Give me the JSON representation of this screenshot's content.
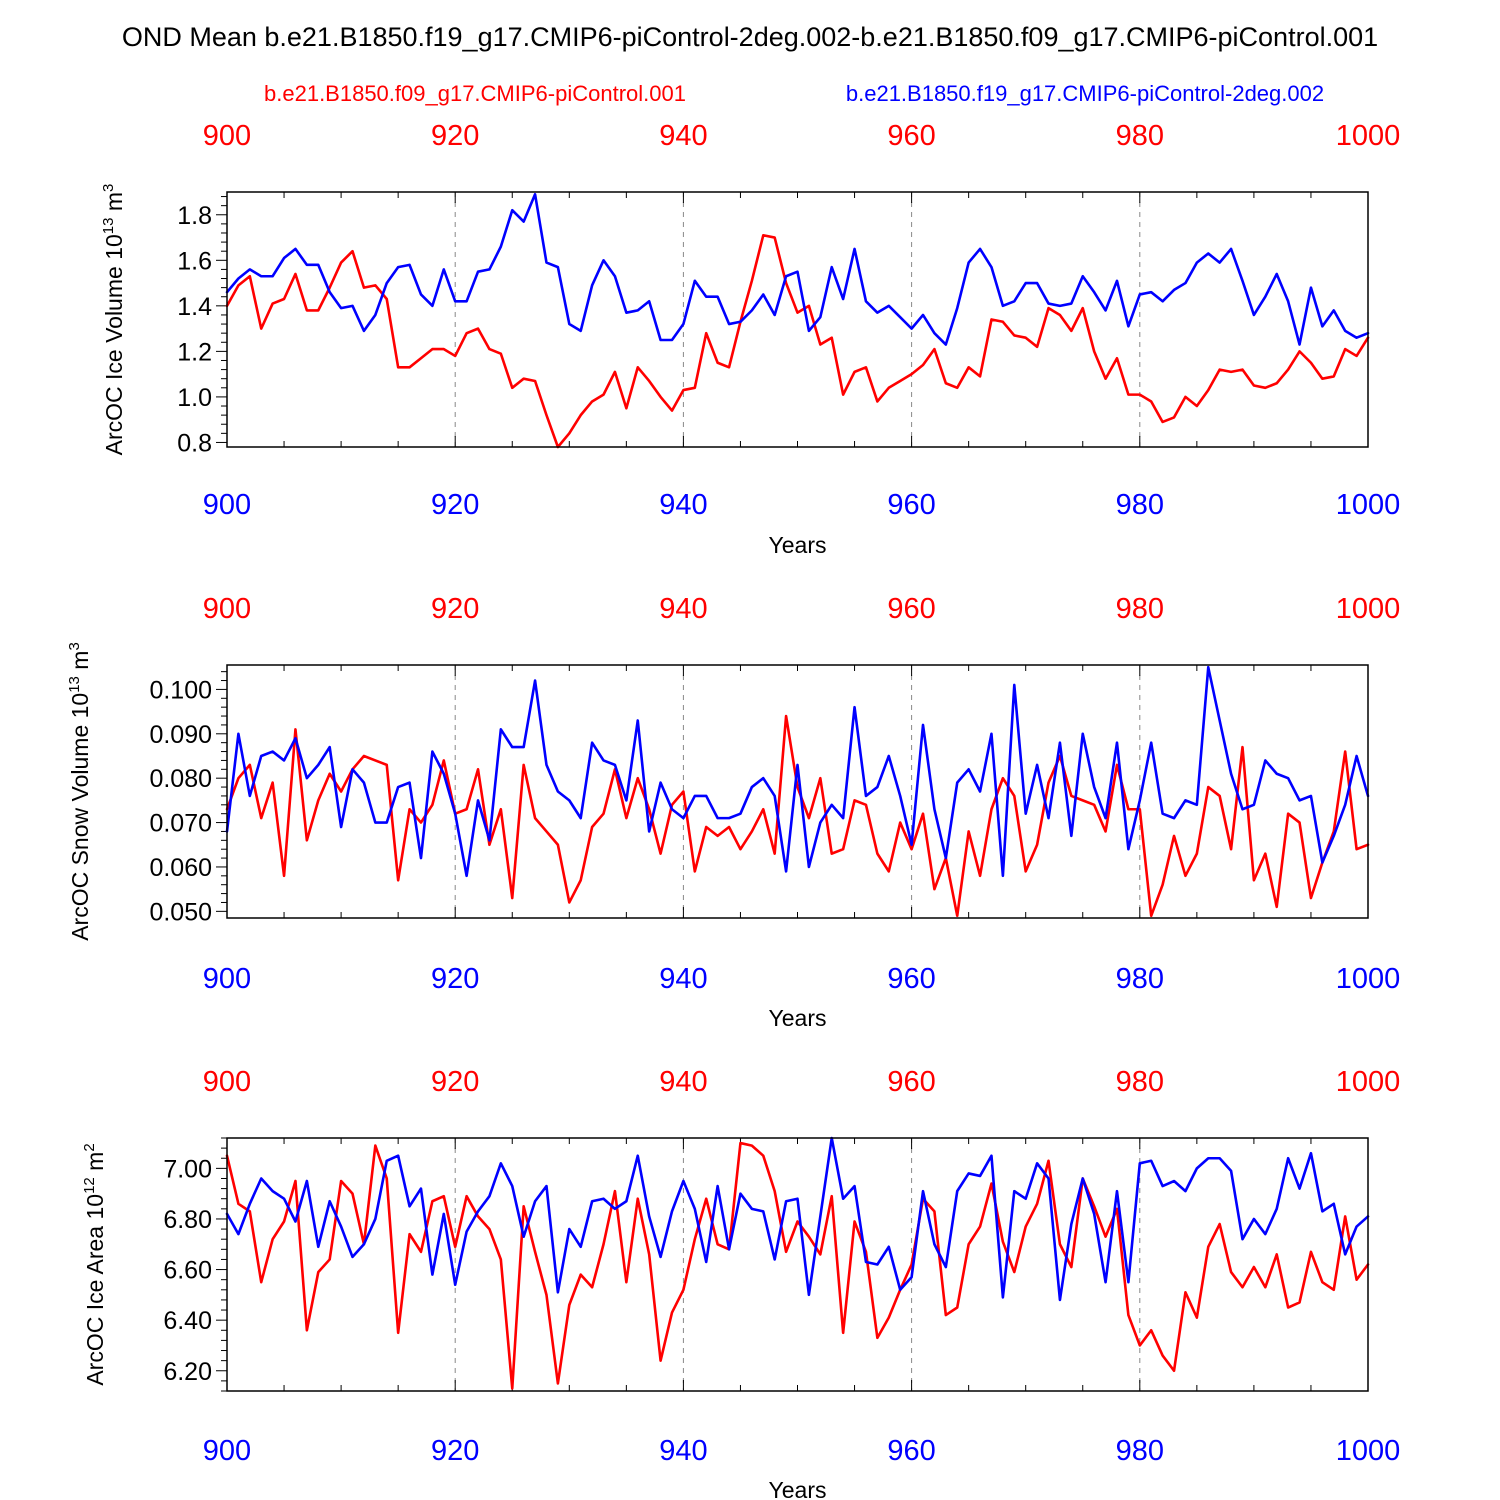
{
  "figure": {
    "title": "OND Mean b.e21.B1850.f19_g17.CMIP6-piControl-2deg.002-b.e21.B1850.f09_g17.CMIP6-piControl.001",
    "legend": {
      "red_label": "b.e21.B1850.f09_g17.CMIP6-piControl.001",
      "blue_label": "b.e21.B1850.f19_g17.CMIP6-piControl-2deg.002"
    },
    "colors": {
      "red": "#ff0000",
      "blue": "#0000ff",
      "axis": "#000000",
      "grid": "#888888"
    }
  },
  "chart_data": [
    {
      "type": "line",
      "title": "",
      "ylabel_main": "ArcOC Ice Volume 10",
      "ylabel_exp": "13",
      "ylabel_tail": " m",
      "ylabel_sup2": "3",
      "xlabel": "Years",
      "xlim": [
        900,
        1000
      ],
      "ylim": [
        0.78,
        1.9
      ],
      "x_ticks": [
        "900",
        "920",
        "940",
        "960",
        "980",
        "1000"
      ],
      "y_ticks": [
        0.8,
        1.0,
        1.2,
        1.4,
        1.6,
        1.8
      ],
      "y_tick_labels": [
        "0.8",
        "1.0",
        "1.2",
        "1.4",
        "1.6",
        "1.8"
      ],
      "y_minor_step": 0.04,
      "x_start": 900,
      "series": [
        {
          "name": "b.e21.B1850.f09_g17.CMIP6-piControl.001",
          "color": "red",
          "values": [
            1.4,
            1.49,
            1.53,
            1.3,
            1.41,
            1.43,
            1.54,
            1.38,
            1.38,
            1.48,
            1.59,
            1.64,
            1.48,
            1.49,
            1.43,
            1.13,
            1.13,
            1.17,
            1.21,
            1.21,
            1.18,
            1.28,
            1.3,
            1.21,
            1.19,
            1.04,
            1.08,
            1.07,
            0.92,
            0.78,
            0.84,
            0.92,
            0.98,
            1.01,
            1.11,
            0.95,
            1.13,
            1.07,
            1.0,
            0.94,
            1.03,
            1.04,
            1.28,
            1.15,
            1.13,
            1.33,
            1.51,
            1.71,
            1.7,
            1.5,
            1.37,
            1.4,
            1.23,
            1.26,
            1.01,
            1.11,
            1.13,
            0.98,
            1.04,
            1.07,
            1.1,
            1.14,
            1.21,
            1.06,
            1.04,
            1.13,
            1.09,
            1.34,
            1.33,
            1.27,
            1.26,
            1.22,
            1.39,
            1.36,
            1.29,
            1.39,
            1.2,
            1.08,
            1.17,
            1.01,
            1.01,
            0.98,
            0.89,
            0.91,
            1.0,
            0.96,
            1.03,
            1.12,
            1.11,
            1.12,
            1.05,
            1.04,
            1.06,
            1.12,
            1.2,
            1.15,
            1.08,
            1.09,
            1.21,
            1.18,
            1.26
          ]
        },
        {
          "name": "b.e21.B1850.f19_g17.CMIP6-piControl-2deg.002",
          "color": "blue",
          "values": [
            1.46,
            1.52,
            1.56,
            1.53,
            1.53,
            1.61,
            1.65,
            1.58,
            1.58,
            1.46,
            1.39,
            1.4,
            1.29,
            1.36,
            1.5,
            1.57,
            1.58,
            1.45,
            1.4,
            1.56,
            1.42,
            1.42,
            1.55,
            1.56,
            1.66,
            1.82,
            1.77,
            1.89,
            1.59,
            1.57,
            1.32,
            1.29,
            1.49,
            1.6,
            1.53,
            1.37,
            1.38,
            1.42,
            1.25,
            1.25,
            1.32,
            1.51,
            1.44,
            1.44,
            1.32,
            1.33,
            1.38,
            1.45,
            1.36,
            1.53,
            1.55,
            1.29,
            1.35,
            1.57,
            1.43,
            1.65,
            1.42,
            1.37,
            1.4,
            1.35,
            1.3,
            1.36,
            1.28,
            1.23,
            1.39,
            1.59,
            1.65,
            1.57,
            1.4,
            1.42,
            1.5,
            1.5,
            1.41,
            1.4,
            1.41,
            1.53,
            1.46,
            1.38,
            1.51,
            1.31,
            1.45,
            1.46,
            1.42,
            1.47,
            1.5,
            1.59,
            1.63,
            1.59,
            1.65,
            1.51,
            1.36,
            1.44,
            1.54,
            1.42,
            1.23,
            1.48,
            1.31,
            1.38,
            1.29,
            1.26,
            1.28
          ]
        }
      ]
    },
    {
      "type": "line",
      "title": "",
      "ylabel_main": "ArcOC Snow Volume 10",
      "ylabel_exp": "13",
      "ylabel_tail": " m",
      "ylabel_sup2": "3",
      "xlabel": "Years",
      "xlim": [
        900,
        1000
      ],
      "ylim": [
        0.0485,
        0.1055
      ],
      "x_ticks": [
        "900",
        "920",
        "940",
        "960",
        "980",
        "1000"
      ],
      "y_ticks": [
        0.05,
        0.06,
        0.07,
        0.08,
        0.09,
        0.1
      ],
      "y_tick_labels": [
        "0.050",
        "0.060",
        "0.070",
        "0.080",
        "0.090",
        "0.100"
      ],
      "y_minor_step": 0.002,
      "x_start": 900,
      "series": [
        {
          "name": "b.e21.B1850.f09_g17.CMIP6-piControl.001",
          "color": "red",
          "values": [
            0.073,
            0.08,
            0.083,
            0.071,
            0.079,
            0.058,
            0.091,
            0.066,
            0.075,
            0.081,
            0.077,
            0.082,
            0.085,
            0.084,
            0.083,
            0.057,
            0.073,
            0.07,
            0.074,
            0.084,
            0.072,
            0.073,
            0.082,
            0.065,
            0.073,
            0.053,
            0.083,
            0.071,
            0.068,
            0.065,
            0.052,
            0.057,
            0.069,
            0.072,
            0.082,
            0.071,
            0.08,
            0.073,
            0.063,
            0.074,
            0.077,
            0.059,
            0.069,
            0.067,
            0.069,
            0.064,
            0.068,
            0.073,
            0.063,
            0.094,
            0.078,
            0.071,
            0.08,
            0.063,
            0.064,
            0.075,
            0.074,
            0.063,
            0.059,
            0.07,
            0.064,
            0.072,
            0.055,
            0.062,
            0.049,
            0.068,
            0.058,
            0.073,
            0.08,
            0.076,
            0.059,
            0.065,
            0.079,
            0.085,
            0.076,
            0.075,
            0.074,
            0.068,
            0.083,
            0.073,
            0.073,
            0.049,
            0.056,
            0.067,
            0.058,
            0.063,
            0.078,
            0.076,
            0.064,
            0.087,
            0.057,
            0.063,
            0.051,
            0.072,
            0.07,
            0.053,
            0.061,
            0.068,
            0.086,
            0.064,
            0.065
          ]
        },
        {
          "name": "b.e21.B1850.f19_g17.CMIP6-piControl-2deg.002",
          "color": "blue",
          "values": [
            0.068,
            0.09,
            0.076,
            0.085,
            0.086,
            0.084,
            0.089,
            0.08,
            0.083,
            0.087,
            0.069,
            0.082,
            0.079,
            0.07,
            0.07,
            0.078,
            0.079,
            0.062,
            0.086,
            0.081,
            0.072,
            0.058,
            0.075,
            0.066,
            0.091,
            0.087,
            0.087,
            0.102,
            0.083,
            0.077,
            0.075,
            0.071,
            0.088,
            0.084,
            0.083,
            0.075,
            0.093,
            0.068,
            0.079,
            0.073,
            0.071,
            0.076,
            0.076,
            0.071,
            0.071,
            0.072,
            0.078,
            0.08,
            0.076,
            0.059,
            0.083,
            0.06,
            0.07,
            0.074,
            0.071,
            0.096,
            0.076,
            0.078,
            0.085,
            0.076,
            0.065,
            0.092,
            0.073,
            0.062,
            0.079,
            0.082,
            0.077,
            0.09,
            0.058,
            0.101,
            0.072,
            0.083,
            0.071,
            0.088,
            0.067,
            0.09,
            0.078,
            0.071,
            0.088,
            0.064,
            0.075,
            0.088,
            0.072,
            0.071,
            0.075,
            0.074,
            0.105,
            0.093,
            0.081,
            0.073,
            0.074,
            0.084,
            0.081,
            0.08,
            0.075,
            0.076,
            0.061,
            0.067,
            0.074,
            0.085,
            0.076
          ]
        }
      ]
    },
    {
      "type": "line",
      "title": "",
      "ylabel_main": "ArcOC Ice Area 10",
      "ylabel_exp": "12",
      "ylabel_tail": " m",
      "ylabel_sup2": "2",
      "xlabel": "Years",
      "xlim": [
        900,
        1000
      ],
      "ylim": [
        6.12,
        7.12
      ],
      "x_ticks": [
        "900",
        "920",
        "940",
        "960",
        "980",
        "1000"
      ],
      "y_ticks": [
        6.2,
        6.4,
        6.6,
        6.8,
        7.0
      ],
      "y_tick_labels": [
        "6.20",
        "6.40",
        "6.60",
        "6.80",
        "7.00"
      ],
      "y_minor_step": 0.04,
      "x_start": 900,
      "series": [
        {
          "name": "b.e21.B1850.f09_g17.CMIP6-piControl.001",
          "color": "red",
          "values": [
            7.05,
            6.86,
            6.83,
            6.55,
            6.72,
            6.79,
            6.95,
            6.36,
            6.59,
            6.64,
            6.95,
            6.9,
            6.7,
            7.09,
            6.96,
            6.35,
            6.74,
            6.67,
            6.87,
            6.89,
            6.69,
            6.89,
            6.81,
            6.76,
            6.64,
            6.13,
            6.85,
            6.67,
            6.5,
            6.15,
            6.46,
            6.58,
            6.53,
            6.7,
            6.91,
            6.55,
            6.88,
            6.66,
            6.24,
            6.43,
            6.52,
            6.72,
            6.88,
            6.7,
            6.68,
            7.1,
            7.09,
            7.05,
            6.91,
            6.67,
            6.79,
            6.73,
            6.66,
            6.89,
            6.35,
            6.79,
            6.67,
            6.33,
            6.41,
            6.52,
            6.62,
            6.88,
            6.83,
            6.42,
            6.45,
            6.7,
            6.77,
            6.94,
            6.71,
            6.59,
            6.77,
            6.86,
            7.03,
            6.7,
            6.61,
            6.96,
            6.85,
            6.73,
            6.84,
            6.42,
            6.3,
            6.36,
            6.26,
            6.2,
            6.51,
            6.41,
            6.69,
            6.78,
            6.59,
            6.53,
            6.61,
            6.53,
            6.66,
            6.45,
            6.47,
            6.67,
            6.55,
            6.52,
            6.81,
            6.56,
            6.62
          ]
        },
        {
          "name": "b.e21.B1850.f19_g17.CMIP6-piControl-2deg.002",
          "color": "blue",
          "values": [
            6.82,
            6.74,
            6.86,
            6.96,
            6.91,
            6.88,
            6.79,
            6.95,
            6.69,
            6.87,
            6.77,
            6.65,
            6.7,
            6.8,
            7.03,
            7.05,
            6.85,
            6.92,
            6.58,
            6.82,
            6.54,
            6.75,
            6.83,
            6.89,
            7.02,
            6.93,
            6.73,
            6.87,
            6.93,
            6.51,
            6.76,
            6.69,
            6.87,
            6.88,
            6.84,
            6.87,
            7.05,
            6.81,
            6.65,
            6.83,
            6.95,
            6.84,
            6.63,
            6.93,
            6.68,
            6.9,
            6.84,
            6.83,
            6.64,
            6.87,
            6.88,
            6.5,
            6.81,
            7.12,
            6.88,
            6.93,
            6.63,
            6.62,
            6.69,
            6.52,
            6.57,
            6.91,
            6.7,
            6.61,
            6.91,
            6.98,
            6.97,
            7.05,
            6.49,
            6.91,
            6.88,
            7.02,
            6.96,
            6.48,
            6.78,
            6.96,
            6.82,
            6.55,
            6.91,
            6.55,
            7.02,
            7.03,
            6.93,
            6.95,
            6.91,
            7.0,
            7.04,
            7.04,
            6.99,
            6.72,
            6.8,
            6.74,
            6.84,
            7.04,
            6.92,
            7.06,
            6.83,
            6.86,
            6.66,
            6.77,
            6.81
          ]
        }
      ]
    }
  ]
}
